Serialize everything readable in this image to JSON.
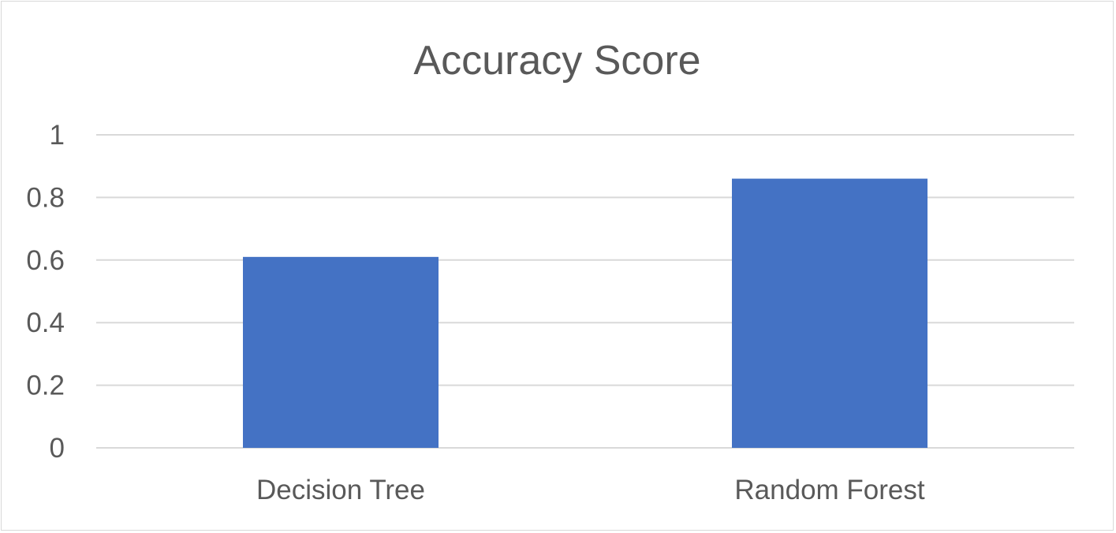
{
  "chart_data": {
    "type": "bar",
    "title": "Accuracy Score",
    "xlabel": "",
    "ylabel": "",
    "categories": [
      "Decision Tree",
      "Random Forest"
    ],
    "values": [
      0.61,
      0.86
    ],
    "ylim": [
      0,
      1
    ],
    "yticks": [
      "0",
      "0.2",
      "0.4",
      "0.6",
      "0.8",
      "1"
    ],
    "ytick_values": [
      0,
      0.2,
      0.4,
      0.6,
      0.8,
      1
    ],
    "grid": true,
    "legend": "none",
    "colors": {
      "bar": "#4472c4",
      "grid": "#d9d9d9",
      "text": "#595959"
    }
  }
}
